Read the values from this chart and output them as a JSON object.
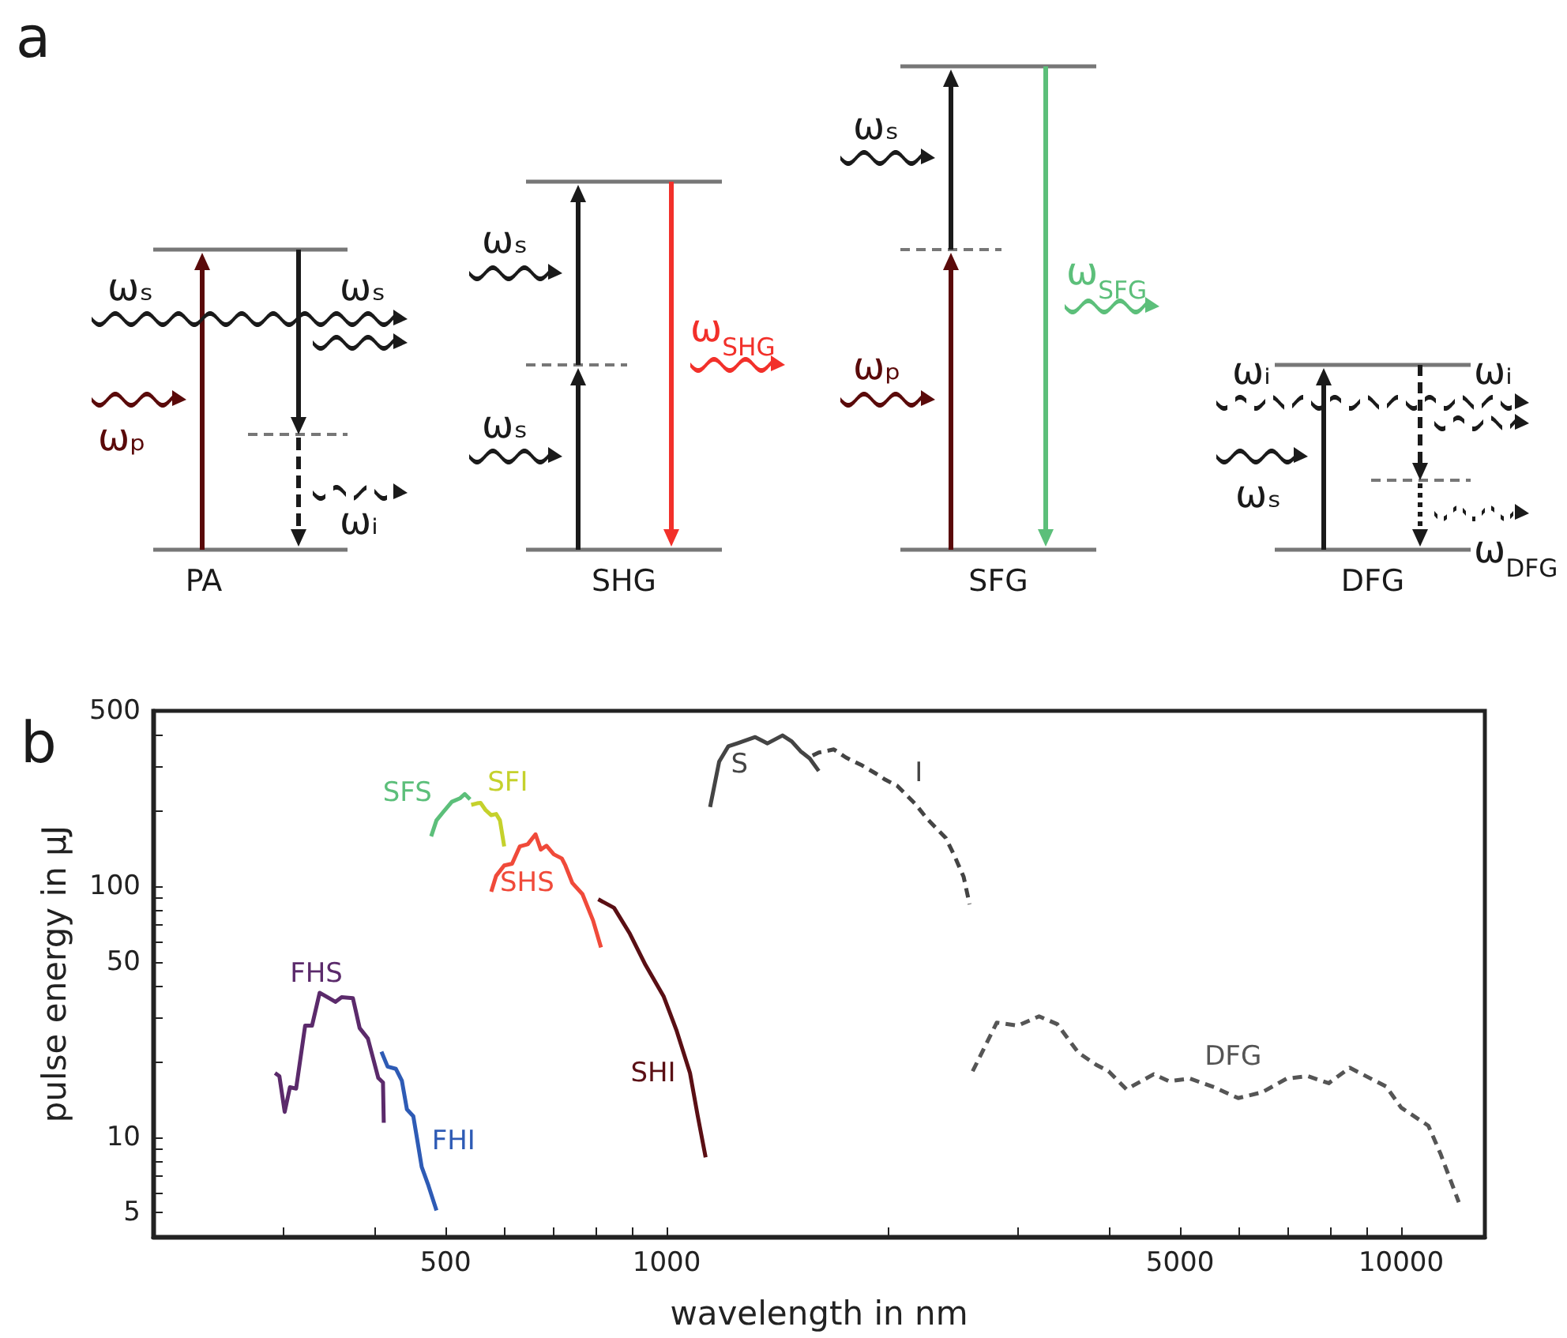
{
  "chart_data": [
    {
      "type": "other",
      "title": "a",
      "annotations": [
        "ωₛ",
        "ωₛ",
        "ωₚ",
        "ωᵢ",
        "PA",
        "ωₛ",
        "ωₛ",
        "ω$_{SHG}$",
        "SHG",
        "ωₛ",
        "ωₚ",
        "ω$_{SFG}$",
        "SFG",
        "ωᵢ",
        "ωᵢ",
        "ωₛ",
        "ω$_{DFG}$",
        "DFG"
      ]
    },
    {
      "type": "line",
      "title": "b",
      "xlabel": "wavelength in nm",
      "ylabel": "pulse energy in μJ",
      "log": "xy",
      "xlim": [
        200,
        13000
      ],
      "ylim": [
        4,
        500
      ],
      "xticks": [
        {
          "value": 300,
          "label": null
        },
        {
          "value": 400,
          "label": null
        },
        500,
        {
          "value": 600,
          "label": null
        },
        {
          "value": 700,
          "label": null
        },
        {
          "value": 800,
          "label": null
        },
        {
          "value": 900,
          "label": null
        },
        1000,
        {
          "value": 2000,
          "label": null
        },
        {
          "value": 3000,
          "label": null
        },
        {
          "value": 4000,
          "label": null
        },
        5000,
        {
          "value": 6000,
          "label": null
        },
        {
          "value": 7000,
          "label": null
        },
        {
          "value": 8000,
          "label": null
        },
        {
          "value": 9000,
          "label": null
        },
        10000
      ],
      "yticks": [
        5,
        {
          "value": 6,
          "label": null
        },
        {
          "value": 7,
          "label": null
        },
        {
          "value": 8,
          "label": null
        },
        {
          "value": 9,
          "label": null
        },
        10,
        {
          "value": 20,
          "label": null
        },
        {
          "value": 30,
          "label": null
        },
        {
          "value": 40,
          "label": null
        },
        50,
        {
          "value": 60,
          "label": null
        },
        {
          "value": 70,
          "label": null
        },
        {
          "value": 80,
          "label": null
        },
        {
          "value": 90,
          "label": null
        },
        100,
        {
          "value": 200,
          "label": null
        },
        {
          "value": 300,
          "label": null
        },
        {
          "value": 400,
          "label": null
        },
        500
      ],
      "series": [
        {
          "name": "FHS",
          "color": "#5b2a6b",
          "line_style": "solid",
          "x": [
            293,
            297,
            302,
            307,
            313,
            322,
            329,
            337,
            347,
            354,
            361,
            374,
            382,
            392,
            405,
            411,
            412
          ],
          "values": [
            18,
            17.5,
            12.6,
            15.8,
            15.6,
            27.8,
            27.8,
            37.6,
            35.8,
            34.6,
            36.1,
            35.8,
            27.2,
            24.7,
            17.2,
            16.5,
            11.4
          ]
        },
        {
          "name": "FHI",
          "color": "#2e5bb5",
          "line_style": "solid",
          "x": [
            409,
            417,
            428,
            436,
            443,
            452,
            458,
            464,
            474,
            486
          ],
          "values": [
            21.9,
            19.1,
            18.7,
            16.8,
            12.9,
            12.1,
            9.6,
            7.6,
            6.4,
            5.1
          ]
        },
        {
          "name": "SFS",
          "color": "#5cbf7a",
          "line_style": "solid",
          "x": [
            478,
            486,
            496,
            510,
            523,
            531,
            540
          ],
          "values": [
            158,
            183,
            197,
            217,
            224,
            233,
            222
          ]
        },
        {
          "name": "SFI",
          "color": "#c5d12c",
          "line_style": "solid",
          "x": [
            542,
            552,
            558,
            567,
            577,
            586,
            593,
            601
          ],
          "values": [
            211,
            214,
            215,
            201,
            192,
            194,
            183,
            144
          ]
        },
        {
          "name": "SHS",
          "color": "#f04a3a",
          "line_style": "solid",
          "x": [
            577,
            586,
            601,
            616,
            631,
            647,
            663,
            674,
            686,
            702,
            720,
            728,
            744,
            768,
            794,
            814
          ],
          "values": [
            95,
            110,
            121,
            123,
            144,
            147,
            161,
            140,
            145,
            134,
            129,
            121,
            103,
            93,
            73,
            57
          ]
        },
        {
          "name": "SHI",
          "color": "#5a0f14",
          "line_style": "solid",
          "x": [
            807,
            848,
            891,
            936,
            991,
            1032,
            1076,
            1102,
            1130
          ],
          "values": [
            88.7,
            82,
            64.7,
            48.5,
            36.3,
            26.5,
            18,
            12.2,
            8.3
          ]
        },
        {
          "name": "S",
          "color": "#444444",
          "line_style": "solid",
          "x": [
            1146,
            1179,
            1213,
            1248,
            1320,
            1372,
            1438,
            1480,
            1522,
            1566,
            1611
          ],
          "values": [
            207,
            314,
            361,
            371,
            393,
            371,
            399,
            378,
            345,
            323,
            288
          ]
        },
        {
          "name": "I",
          "color": "#444444",
          "line_style": "dashed",
          "x": [
            1580,
            1611,
            1689,
            1754,
            1838,
            1928,
            1984,
            2061,
            2180,
            2265,
            2398,
            2466,
            2537,
            2585
          ],
          "values": [
            332,
            341,
            351,
            326,
            305,
            281,
            266,
            251,
            213,
            185,
            156,
            132,
            109,
            84.7
          ]
        },
        {
          "name": "DFG",
          "color": "#555555",
          "line_style": "dashed",
          "x": [
            2610,
            2815,
            3007,
            3214,
            3402,
            3635,
            3846,
            3996,
            4227,
            4603,
            4829,
            5158,
            5563,
            6000,
            6471,
            6982,
            7458,
            7970,
            8511,
            9539,
            10000,
            10890,
            11310,
            11980
          ],
          "values": [
            18.3,
            28.6,
            27.8,
            30.3,
            28.2,
            21.7,
            19.4,
            18.3,
            15.5,
            17.8,
            16.7,
            17.1,
            15.8,
            14.3,
            15.1,
            17.1,
            17.5,
            16.4,
            18.9,
            15.9,
            13.1,
            11.1,
            8.6,
            5.5
          ]
        }
      ]
    }
  ]
}
